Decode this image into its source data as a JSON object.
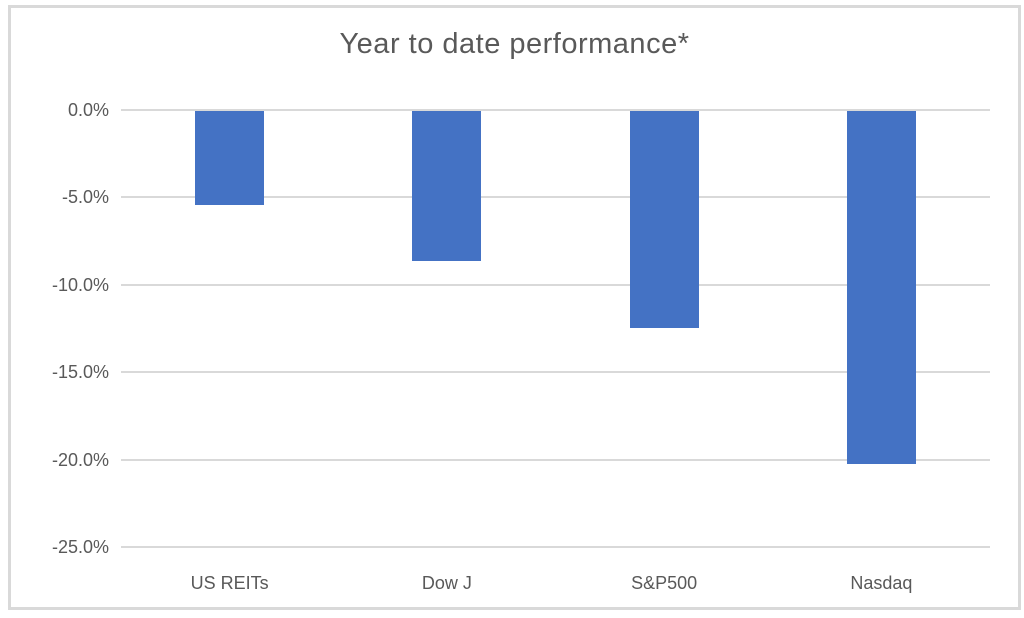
{
  "chart_data": {
    "type": "bar",
    "title": "Year to date performance*",
    "categories": [
      "US REITs",
      "Dow J",
      "S&P500",
      "Nasdaq"
    ],
    "values": [
      -5.4,
      -8.6,
      -12.4,
      -20.2
    ],
    "xlabel": "",
    "ylabel": "",
    "ylim": [
      -25,
      0
    ],
    "ytick_labels": [
      "0.0%",
      "-5.0%",
      "-10.0%",
      "-15.0%",
      "-20.0%",
      "-25.0%"
    ],
    "grid": true,
    "legend": "none",
    "colors": {
      "bar": "#4472C4",
      "gridline": "#d9d9d9",
      "frame_border": "#d9d9d9",
      "text": "#595959",
      "background": "#ffffff"
    }
  }
}
